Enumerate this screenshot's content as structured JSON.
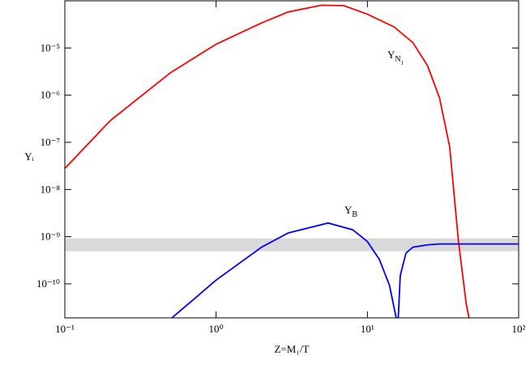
{
  "chart_data": {
    "type": "line",
    "xlabel": "Z=M₁/T",
    "ylabel": "Yᵢ",
    "xscale": "log",
    "yscale": "log",
    "xlim": [
      0.1,
      100
    ],
    "ylim": [
      1.9e-11,
      0.0001
    ],
    "xticks": [
      {
        "value": 0.1,
        "label": "10⁻¹"
      },
      {
        "value": 1,
        "label": "10⁰"
      },
      {
        "value": 10,
        "label": "10¹"
      },
      {
        "value": 100,
        "label": "10²"
      }
    ],
    "yticks": [
      {
        "value": 1e-10,
        "label": "10⁻¹⁰"
      },
      {
        "value": 1e-09,
        "label": "10⁻⁹"
      },
      {
        "value": 1e-08,
        "label": "10⁻⁸"
      },
      {
        "value": 1e-07,
        "label": "10⁻⁷"
      },
      {
        "value": 1e-06,
        "label": "10⁻⁶"
      },
      {
        "value": 1e-05,
        "label": "10⁻⁵"
      }
    ],
    "band": {
      "ylim": [
        4.9e-10,
        9.2e-10
      ],
      "color": "#d9d9d9"
    },
    "series": [
      {
        "label_parts": [
          "Y",
          "N",
          "1"
        ],
        "color": "#ff0000",
        "x": [
          0.1,
          0.2,
          0.5,
          1,
          2,
          3,
          5,
          7,
          10,
          15,
          20,
          25,
          30,
          35,
          40,
          45,
          47
        ],
        "values": [
          2.8e-08,
          2.9e-07,
          3e-06,
          1.2e-05,
          3.4e-05,
          5.8e-05,
          8.1e-05,
          7.9e-05,
          5.2e-05,
          2.8e-05,
          1.3e-05,
          4.2e-06,
          8.7e-07,
          8e-08,
          8e-10,
          3.8e-11,
          1.9e-11
        ]
      },
      {
        "label_parts": [
          "Y",
          "B"
        ],
        "color": "#0000ff",
        "x": [
          0.51,
          0.7,
          1,
          2,
          3,
          5.5,
          8,
          10,
          12,
          14,
          15.5,
          16,
          16.5,
          18,
          20,
          25,
          30,
          100
        ],
        "values": [
          1.9e-11,
          4.5e-11,
          1.2e-10,
          6e-10,
          1.2e-09,
          1.95e-09,
          1.4e-09,
          7.9e-10,
          3.3e-10,
          9.3e-11,
          1.9e-11,
          1.9e-11,
          1.5e-10,
          4.5e-10,
          6e-10,
          6.7e-10,
          7e-10,
          7e-10
        ]
      }
    ]
  }
}
